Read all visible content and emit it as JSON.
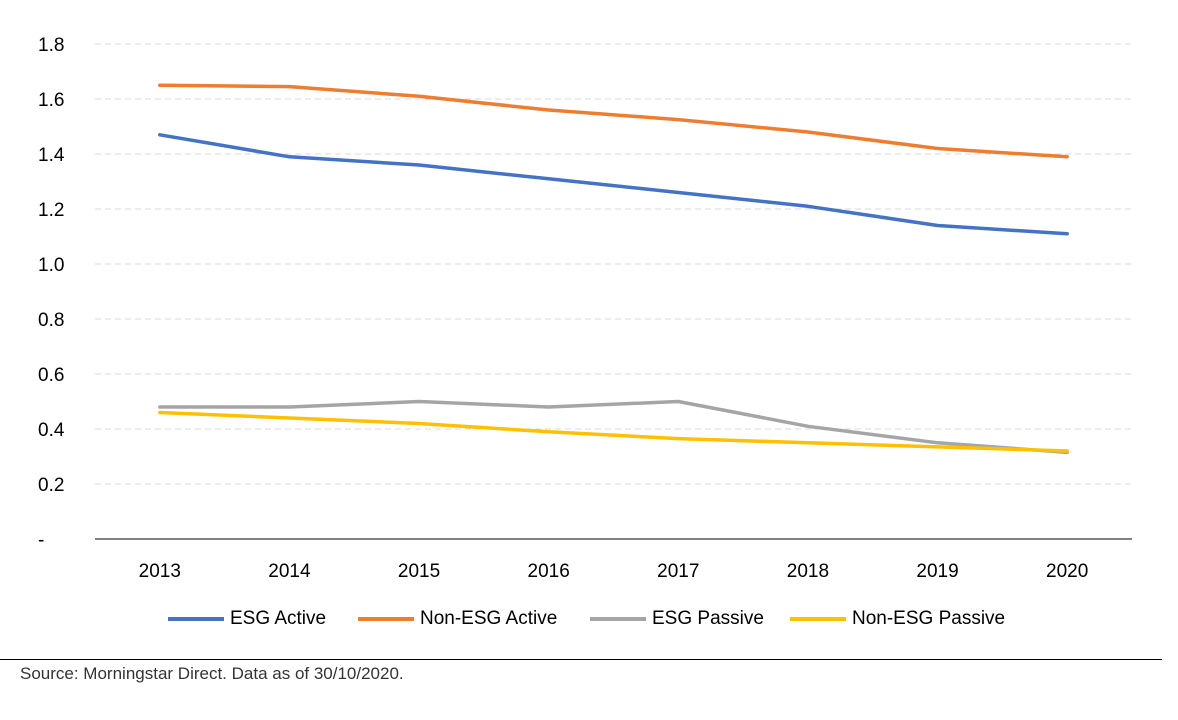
{
  "chart_data": {
    "type": "line",
    "categories": [
      "2013",
      "2014",
      "2015",
      "2016",
      "2017",
      "2018",
      "2019",
      "2020"
    ],
    "y_ticks": [
      "-",
      "0.2",
      "0.4",
      "0.6",
      "0.8",
      "1.0",
      "1.2",
      "1.4",
      "1.6",
      "1.8"
    ],
    "ylim": [
      0,
      1.8
    ],
    "grid": true,
    "legend_position": "bottom",
    "series": [
      {
        "name": "ESG Active",
        "color": "#4472C4",
        "values": [
          1.47,
          1.39,
          1.36,
          1.31,
          1.26,
          1.21,
          1.14,
          1.11
        ]
      },
      {
        "name": "Non-ESG Active",
        "color": "#ED7D31",
        "values": [
          1.65,
          1.645,
          1.61,
          1.56,
          1.525,
          1.48,
          1.42,
          1.39
        ]
      },
      {
        "name": "ESG Passive",
        "color": "#A5A5A5",
        "values": [
          0.48,
          0.48,
          0.5,
          0.48,
          0.5,
          0.41,
          0.35,
          0.315
        ]
      },
      {
        "name": "Non-ESG Passive",
        "color": "#FFC000",
        "values": [
          0.46,
          0.44,
          0.42,
          0.39,
          0.365,
          0.35,
          0.335,
          0.32
        ]
      }
    ]
  },
  "footer": {
    "source": "Source: Morningstar Direct. Data as of 30/10/2020."
  }
}
